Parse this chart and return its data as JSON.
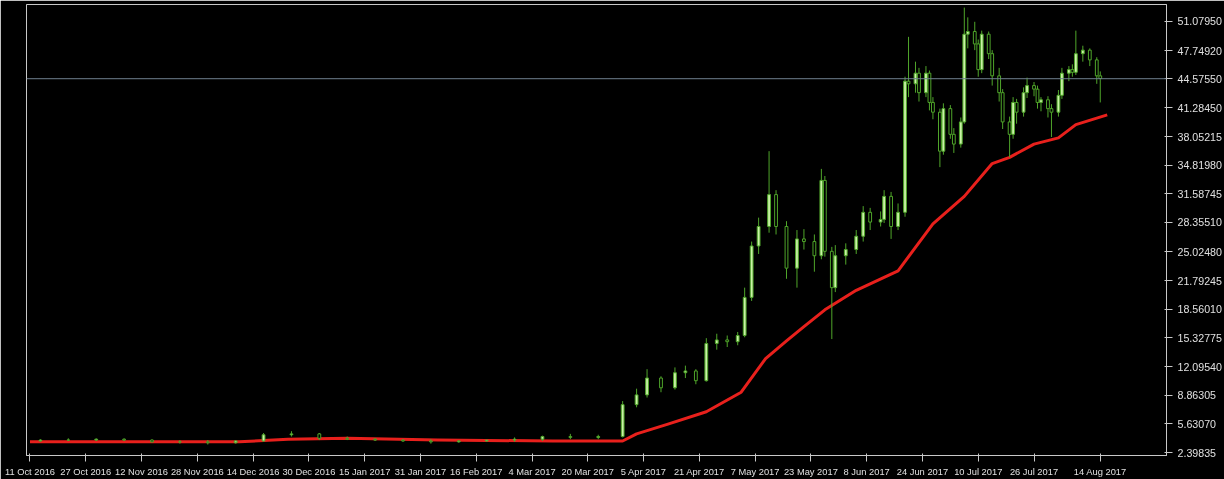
{
  "chart_data": {
    "type": "candlestick",
    "xlim": [
      "2016-10-10",
      "2017-09-02"
    ],
    "ylim": [
      2.06,
      52.95
    ],
    "xticks": [
      {
        "value": "2016-10-11",
        "label": "11 Oct 2016"
      },
      {
        "value": "2016-10-27",
        "label": "27 Oct 2016"
      },
      {
        "value": "2016-11-12",
        "label": "12 Nov 2016"
      },
      {
        "value": "2016-11-28",
        "label": "28 Nov 2016"
      },
      {
        "value": "2016-12-14",
        "label": "14 Dec 2016"
      },
      {
        "value": "2016-12-30",
        "label": "30 Dec 2016"
      },
      {
        "value": "2017-01-15",
        "label": "15 Jan 2017"
      },
      {
        "value": "2017-01-31",
        "label": "31 Jan 2017"
      },
      {
        "value": "2017-02-16",
        "label": "16 Feb 2017"
      },
      {
        "value": "2017-03-04",
        "label": "4 Mar 2017"
      },
      {
        "value": "2017-03-20",
        "label": "20 Mar 2017"
      },
      {
        "value": "2017-04-05",
        "label": "5 Apr 2017"
      },
      {
        "value": "2017-04-21",
        "label": "21 Apr 2017"
      },
      {
        "value": "2017-05-07",
        "label": "7 May 2017"
      },
      {
        "value": "2017-05-23",
        "label": "23 May 2017"
      },
      {
        "value": "2017-06-08",
        "label": "8 Jun 2017"
      },
      {
        "value": "2017-06-24",
        "label": "24 Jun 2017"
      },
      {
        "value": "2017-07-10",
        "label": "10 Jul 2017"
      },
      {
        "value": "2017-07-26",
        "label": "26 Jul 2017"
      },
      {
        "value": "2017-08-14",
        "label": "14 Aug 2017"
      }
    ],
    "yticks": [
      {
        "value": 2.39835,
        "label": "2.39835"
      },
      {
        "value": 5.6307,
        "label": "5.63070"
      },
      {
        "value": 8.86305,
        "label": "8.86305"
      },
      {
        "value": 12.0954,
        "label": "12.09540"
      },
      {
        "value": 15.32775,
        "label": "15.32775"
      },
      {
        "value": 18.5601,
        "label": "18.56010"
      },
      {
        "value": 21.79245,
        "label": "21.79245"
      },
      {
        "value": 25.0248,
        "label": "25.02480"
      },
      {
        "value": 28.3551,
        "label": "28.35510"
      },
      {
        "value": 31.58745,
        "label": "31.58745"
      },
      {
        "value": 34.8198,
        "label": "34.81980"
      },
      {
        "value": 38.05215,
        "label": "38.05215"
      },
      {
        "value": 41.2845,
        "label": "41.28450"
      },
      {
        "value": 47.7492,
        "label": "47.74920"
      },
      {
        "value": 51.0795,
        "label": "51.07950"
      }
    ],
    "ref_lines": [
      {
        "axis": "y",
        "value": 44.5755,
        "label": "44.57550",
        "color": "#6f7f8f"
      }
    ],
    "grid": false,
    "series": [
      {
        "color": "#4fa52a",
        "x": [
          "2016-10-14",
          "2016-10-22",
          "2016-10-30",
          "2016-11-07",
          "2016-11-15",
          "2016-11-23",
          "2016-12-01",
          "2016-12-09",
          "2016-12-17",
          "2016-12-25",
          "2017-01-02",
          "2017-01-10",
          "2017-01-18",
          "2017-01-26",
          "2017-02-03",
          "2017-02-11",
          "2017-02-19",
          "2017-02-27",
          "2017-03-07",
          "2017-03-15",
          "2017-03-23",
          "2017-03-30",
          "2017-04-03",
          "2017-04-06",
          "2017-04-10",
          "2017-04-14",
          "2017-04-17",
          "2017-04-20",
          "2017-04-23",
          "2017-04-26",
          "2017-04-29",
          "2017-05-02",
          "2017-05-04",
          "2017-05-06",
          "2017-05-08",
          "2017-05-11",
          "2017-05-13",
          "2017-05-16",
          "2017-05-19",
          "2017-05-21",
          "2017-05-24",
          "2017-05-26",
          "2017-05-27",
          "2017-05-29",
          "2017-05-30",
          "2017-06-02",
          "2017-06-05",
          "2017-06-07",
          "2017-06-09",
          "2017-06-12",
          "2017-06-13",
          "2017-06-15",
          "2017-06-17",
          "2017-06-19",
          "2017-06-20",
          "2017-06-22",
          "2017-06-23",
          "2017-06-25",
          "2017-06-26",
          "2017-06-27",
          "2017-06-29",
          "2017-06-30",
          "2017-07-02",
          "2017-07-03",
          "2017-07-05",
          "2017-07-06",
          "2017-07-07",
          "2017-07-09",
          "2017-07-10",
          "2017-07-11",
          "2017-07-13",
          "2017-07-14",
          "2017-07-16",
          "2017-07-17",
          "2017-07-19",
          "2017-07-20",
          "2017-07-21",
          "2017-07-23",
          "2017-07-24",
          "2017-07-26",
          "2017-07-27",
          "2017-07-28",
          "2017-07-30",
          "2017-07-31",
          "2017-08-02",
          "2017-08-03",
          "2017-08-05",
          "2017-08-06",
          "2017-08-07",
          "2017-08-09",
          "2017-08-11",
          "2017-08-13",
          "2017-08-14"
        ],
        "ohlc": [
          [
            3.7,
            3.9,
            3.6,
            3.8
          ],
          [
            3.8,
            4.0,
            3.7,
            3.8
          ],
          [
            3.8,
            4.0,
            3.7,
            3.9
          ],
          [
            3.9,
            4.0,
            3.7,
            3.8
          ],
          [
            3.8,
            3.9,
            3.5,
            3.6
          ],
          [
            3.6,
            3.8,
            3.4,
            3.6
          ],
          [
            3.6,
            3.8,
            3.3,
            3.5
          ],
          [
            3.5,
            3.8,
            3.4,
            3.7
          ],
          [
            3.7,
            4.6,
            3.6,
            4.4
          ],
          [
            4.4,
            4.8,
            4.2,
            4.5
          ],
          [
            4.5,
            4.6,
            3.8,
            4.0
          ],
          [
            4.0,
            4.2,
            3.8,
            3.9
          ],
          [
            3.9,
            4.0,
            3.7,
            3.8
          ],
          [
            3.8,
            3.9,
            3.6,
            3.7
          ],
          [
            3.7,
            3.9,
            3.4,
            3.6
          ],
          [
            3.6,
            3.8,
            3.5,
            3.7
          ],
          [
            3.7,
            3.8,
            3.6,
            3.8
          ],
          [
            3.8,
            4.1,
            3.6,
            3.9
          ],
          [
            3.9,
            4.3,
            3.7,
            4.2
          ],
          [
            4.2,
            4.5,
            3.9,
            4.1
          ],
          [
            4.1,
            4.4,
            3.9,
            4.2
          ],
          [
            4.2,
            8.2,
            4.1,
            7.8
          ],
          [
            7.8,
            9.6,
            7.5,
            8.9
          ],
          [
            8.9,
            11.8,
            8.6,
            10.8
          ],
          [
            10.8,
            11.0,
            9.2,
            9.7
          ],
          [
            9.7,
            12.0,
            9.5,
            11.4
          ],
          [
            11.4,
            12.2,
            10.8,
            11.6
          ],
          [
            11.6,
            11.8,
            10.1,
            10.5
          ],
          [
            10.5,
            15.3,
            10.4,
            14.7
          ],
          [
            14.7,
            15.8,
            14.0,
            15.1
          ],
          [
            15.1,
            15.6,
            14.3,
            14.9
          ],
          [
            14.9,
            16.0,
            14.5,
            15.6
          ],
          [
            15.6,
            21.0,
            15.4,
            19.9
          ],
          [
            19.9,
            26.2,
            19.5,
            25.7
          ],
          [
            25.7,
            28.9,
            24.8,
            27.9
          ],
          [
            27.9,
            36.4,
            27.2,
            31.5
          ],
          [
            31.5,
            32.0,
            27.0,
            27.9
          ],
          [
            27.9,
            28.5,
            22.0,
            23.2
          ],
          [
            23.2,
            27.5,
            21.0,
            26.5
          ],
          [
            26.5,
            27.6,
            25.3,
            26.2
          ],
          [
            26.2,
            27.0,
            22.8,
            24.6
          ],
          [
            24.6,
            34.4,
            24.2,
            33.1
          ],
          [
            33.1,
            33.6,
            24.5,
            25.1
          ],
          [
            25.1,
            25.6,
            15.2,
            21.0
          ],
          [
            21.0,
            25.8,
            20.5,
            24.6
          ],
          [
            24.6,
            26.0,
            23.6,
            25.3
          ],
          [
            25.3,
            27.5,
            24.8,
            26.8
          ],
          [
            26.8,
            30.2,
            26.2,
            29.5
          ],
          [
            29.5,
            30.0,
            27.5,
            28.4
          ],
          [
            28.4,
            29.6,
            27.9,
            28.7
          ],
          [
            28.7,
            32.0,
            28.3,
            31.3
          ],
          [
            31.3,
            31.8,
            26.5,
            27.9
          ],
          [
            27.9,
            30.5,
            27.5,
            29.5
          ],
          [
            29.5,
            44.8,
            29.0,
            44.3
          ],
          [
            44.3,
            49.3,
            42.5,
            44.0
          ],
          [
            44.0,
            46.5,
            43.0,
            45.2
          ],
          [
            45.2,
            45.8,
            42.0,
            43.0
          ],
          [
            43.0,
            46.0,
            42.5,
            45.2
          ],
          [
            45.2,
            45.5,
            41.0,
            41.9
          ],
          [
            41.9,
            42.5,
            40.0,
            40.8
          ],
          [
            40.8,
            41.2,
            34.6,
            36.4
          ],
          [
            36.4,
            41.8,
            36.0,
            41.2
          ],
          [
            41.2,
            41.6,
            37.8,
            38.3
          ],
          [
            38.3,
            39.0,
            36.2,
            37.2
          ],
          [
            37.2,
            40.2,
            36.8,
            39.7
          ],
          [
            39.7,
            52.6,
            39.5,
            49.6
          ],
          [
            49.6,
            51.5,
            48.0,
            49.9
          ],
          [
            49.9,
            51.0,
            47.8,
            48.5
          ],
          [
            48.5,
            49.0,
            44.8,
            45.6
          ],
          [
            45.6,
            50.0,
            45.2,
            49.6
          ],
          [
            49.6,
            49.9,
            46.8,
            47.4
          ],
          [
            47.4,
            47.8,
            43.8,
            44.9
          ],
          [
            44.9,
            45.8,
            42.0,
            43.0
          ],
          [
            43.0,
            43.4,
            38.9,
            39.7
          ],
          [
            39.7,
            40.3,
            35.7,
            38.3
          ],
          [
            38.3,
            42.5,
            37.8,
            41.9
          ],
          [
            41.9,
            42.3,
            39.5,
            40.8
          ],
          [
            40.8,
            43.6,
            40.3,
            43.0
          ],
          [
            43.0,
            44.7,
            42.4,
            43.8
          ],
          [
            43.8,
            44.2,
            42.6,
            43.4
          ],
          [
            43.4,
            43.8,
            41.2,
            41.9
          ],
          [
            41.9,
            42.5,
            40.9,
            42.2
          ],
          [
            42.2,
            42.6,
            40.2,
            41.2
          ],
          [
            41.2,
            41.7,
            38.0,
            40.8
          ],
          [
            40.8,
            43.3,
            40.3,
            42.7
          ],
          [
            42.7,
            45.8,
            42.3,
            45.2
          ],
          [
            45.2,
            46.0,
            44.3,
            45.6
          ],
          [
            45.6,
            46.2,
            44.8,
            45.3
          ],
          [
            45.3,
            50.0,
            45.0,
            47.4
          ],
          [
            47.4,
            48.3,
            46.5,
            47.8
          ],
          [
            47.8,
            48.0,
            46.0,
            46.7
          ],
          [
            46.7,
            47.0,
            44.0,
            44.9
          ],
          [
            44.9,
            45.4,
            41.9,
            44.6
          ]
        ]
      },
      {
        "type": "line",
        "color": "#e8201c",
        "x": [
          "2016-10-11",
          "2016-11-20",
          "2016-12-10",
          "2016-12-24",
          "2017-01-10",
          "2017-02-05",
          "2017-03-10",
          "2017-03-30",
          "2017-04-03",
          "2017-04-12",
          "2017-04-23",
          "2017-05-03",
          "2017-05-10",
          "2017-05-16",
          "2017-05-21",
          "2017-05-27",
          "2017-06-05",
          "2017-06-17",
          "2017-06-27",
          "2017-07-06",
          "2017-07-14",
          "2017-07-19",
          "2017-07-26",
          "2017-08-02",
          "2017-08-07",
          "2017-08-16"
        ],
        "values": [
          3.6,
          3.6,
          3.6,
          3.9,
          4.0,
          3.8,
          3.7,
          3.7,
          4.5,
          5.6,
          7.0,
          9.2,
          13.0,
          15.0,
          16.6,
          18.5,
          20.7,
          22.9,
          28.2,
          31.3,
          35.0,
          35.7,
          37.2,
          37.9,
          39.4,
          40.5
        ]
      }
    ]
  }
}
